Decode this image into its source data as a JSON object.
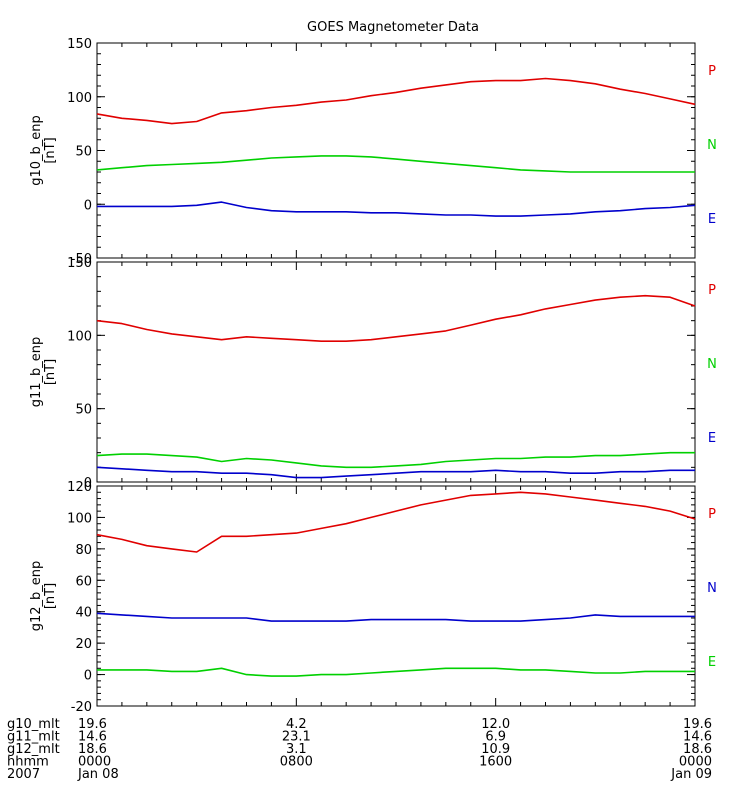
{
  "chart_data": [
    {
      "type": "line",
      "title": "GOES Magnetometer Data",
      "ylabel": "g10_b_enp",
      "yunit": "[nT]",
      "ylim": [
        -50,
        150
      ],
      "yticks": [
        -50,
        0,
        50,
        100,
        150
      ],
      "xlim": [
        0,
        24
      ],
      "x": [
        0,
        1,
        2,
        3,
        4,
        5,
        6,
        7,
        8,
        9,
        10,
        11,
        12,
        13,
        14,
        15,
        16,
        17,
        18,
        19,
        20,
        21,
        22,
        23,
        24
      ],
      "series": [
        {
          "name": "P",
          "color": "#e00000",
          "values": [
            84,
            80,
            78,
            75,
            77,
            85,
            87,
            90,
            92,
            95,
            97,
            101,
            104,
            108,
            111,
            114,
            115,
            115,
            117,
            115,
            112,
            107,
            103,
            98,
            93
          ]
        },
        {
          "name": "N",
          "color": "#00d000",
          "values": [
            32,
            34,
            36,
            37,
            38,
            39,
            41,
            43,
            44,
            45,
            45,
            44,
            42,
            40,
            38,
            36,
            34,
            32,
            31,
            30,
            30,
            30,
            30,
            30,
            30
          ]
        },
        {
          "name": "E",
          "color": "#0000cc",
          "values": [
            -2,
            -2,
            -2,
            -2,
            -1,
            2,
            -3,
            -6,
            -7,
            -7,
            -7,
            -8,
            -8,
            -9,
            -10,
            -10,
            -11,
            -11,
            -10,
            -9,
            -7,
            -6,
            -4,
            -3,
            -1
          ]
        }
      ]
    },
    {
      "type": "line",
      "ylabel": "g11_b_enp",
      "yunit": "[nT]",
      "ylim": [
        0,
        150
      ],
      "yticks": [
        0,
        50,
        100,
        150
      ],
      "xlim": [
        0,
        24
      ],
      "x": [
        0,
        1,
        2,
        3,
        4,
        5,
        6,
        7,
        8,
        9,
        10,
        11,
        12,
        13,
        14,
        15,
        16,
        17,
        18,
        19,
        20,
        21,
        22,
        23,
        24
      ],
      "series": [
        {
          "name": "P",
          "color": "#e00000",
          "values": [
            110,
            108,
            104,
            101,
            99,
            97,
            99,
            98,
            97,
            96,
            96,
            97,
            99,
            101,
            103,
            107,
            111,
            114,
            118,
            121,
            124,
            126,
            127,
            126,
            120
          ]
        },
        {
          "name": "N",
          "color": "#00d000",
          "values": [
            18,
            19,
            19,
            18,
            17,
            14,
            16,
            15,
            13,
            11,
            10,
            10,
            11,
            12,
            14,
            15,
            16,
            16,
            17,
            17,
            18,
            18,
            19,
            20,
            20
          ]
        },
        {
          "name": "E",
          "color": "#0000cc",
          "values": [
            10,
            9,
            8,
            7,
            7,
            6,
            6,
            5,
            3,
            3,
            4,
            5,
            6,
            7,
            7,
            7,
            8,
            7,
            7,
            6,
            6,
            7,
            7,
            8,
            8
          ]
        }
      ]
    },
    {
      "type": "line",
      "ylabel": "g12_b_enp",
      "yunit": "[nT]",
      "ylim": [
        -20,
        120
      ],
      "yticks": [
        -20,
        0,
        20,
        40,
        60,
        80,
        100,
        120
      ],
      "xlim": [
        0,
        24
      ],
      "x": [
        0,
        1,
        2,
        3,
        4,
        5,
        6,
        7,
        8,
        9,
        10,
        11,
        12,
        13,
        14,
        15,
        16,
        17,
        18,
        19,
        20,
        21,
        22,
        23,
        24
      ],
      "series": [
        {
          "name": "P",
          "color": "#e00000",
          "values": [
            89,
            86,
            82,
            80,
            78,
            88,
            88,
            89,
            90,
            93,
            96,
            100,
            104,
            108,
            111,
            114,
            115,
            116,
            115,
            113,
            111,
            109,
            107,
            104,
            99
          ]
        },
        {
          "name": "N",
          "color": "#0000cc",
          "values": [
            39,
            38,
            37,
            36,
            36,
            36,
            36,
            34,
            34,
            34,
            34,
            35,
            35,
            35,
            35,
            34,
            34,
            34,
            35,
            36,
            38,
            37,
            37,
            37,
            37
          ]
        },
        {
          "name": "E",
          "color": "#00d000",
          "values": [
            3,
            3,
            3,
            2,
            2,
            4,
            0,
            -1,
            -1,
            0,
            0,
            1,
            2,
            3,
            4,
            4,
            4,
            3,
            3,
            2,
            1,
            1,
            2,
            2,
            2
          ]
        }
      ]
    }
  ],
  "bottom_table": {
    "rows": [
      {
        "label": "g10_mlt",
        "values": [
          "19.6",
          "4.2",
          "12.0",
          "19.6"
        ]
      },
      {
        "label": "g11_mlt",
        "values": [
          "14.6",
          "23.1",
          "6.9",
          "14.6"
        ]
      },
      {
        "label": "g12_mlt",
        "values": [
          "18.6",
          "3.1",
          "10.9",
          "18.6"
        ]
      },
      {
        "label": "hhmm",
        "values": [
          "0000",
          "0800",
          "1600",
          "0000"
        ]
      },
      {
        "label": "2007",
        "values": [
          "Jan 08",
          "",
          "",
          "Jan 09"
        ]
      }
    ]
  }
}
